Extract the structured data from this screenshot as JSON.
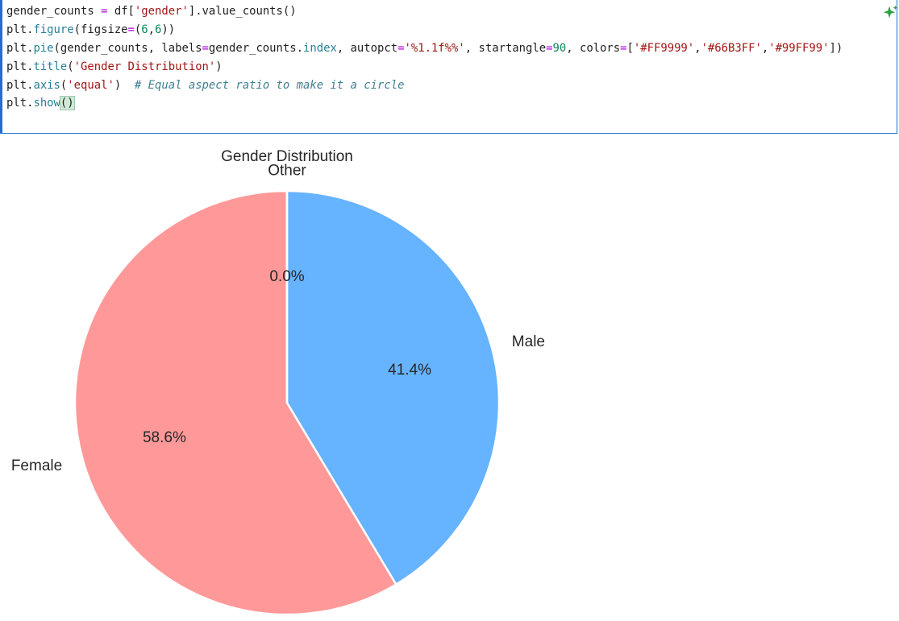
{
  "code_cell": {
    "lines": [
      [
        {
          "t": "gender_counts ",
          "c": ""
        },
        {
          "t": "=",
          "c": "op"
        },
        {
          "t": " df[",
          "c": ""
        },
        {
          "t": "'gender'",
          "c": "str"
        },
        {
          "t": "].value_counts()",
          "c": ""
        }
      ],
      [
        {
          "t": "plt.",
          "c": ""
        },
        {
          "t": "figure",
          "c": "fn"
        },
        {
          "t": "(figsize",
          "c": ""
        },
        {
          "t": "=",
          "c": "op"
        },
        {
          "t": "(",
          "c": ""
        },
        {
          "t": "6",
          "c": "num"
        },
        {
          "t": ",",
          "c": ""
        },
        {
          "t": "6",
          "c": "num"
        },
        {
          "t": "))",
          "c": ""
        }
      ],
      [
        {
          "t": "plt.",
          "c": ""
        },
        {
          "t": "pie",
          "c": "fn"
        },
        {
          "t": "(gender_counts, labels",
          "c": ""
        },
        {
          "t": "=",
          "c": "op"
        },
        {
          "t": "gender_counts.",
          "c": ""
        },
        {
          "t": "index",
          "c": "fn"
        },
        {
          "t": ", autopct",
          "c": ""
        },
        {
          "t": "=",
          "c": "op"
        },
        {
          "t": "'%1.1f%%'",
          "c": "str"
        },
        {
          "t": ", startangle",
          "c": ""
        },
        {
          "t": "=",
          "c": "op"
        },
        {
          "t": "90",
          "c": "num"
        },
        {
          "t": ", colors",
          "c": ""
        },
        {
          "t": "=",
          "c": "op"
        },
        {
          "t": "[",
          "c": ""
        },
        {
          "t": "'#FF9999'",
          "c": "str"
        },
        {
          "t": ",",
          "c": ""
        },
        {
          "t": "'#66B3FF'",
          "c": "str"
        },
        {
          "t": ",",
          "c": ""
        },
        {
          "t": "'#99FF99'",
          "c": "str"
        },
        {
          "t": "])",
          "c": ""
        }
      ],
      [
        {
          "t": "plt.",
          "c": ""
        },
        {
          "t": "title",
          "c": "fn"
        },
        {
          "t": "(",
          "c": ""
        },
        {
          "t": "'Gender Distribution'",
          "c": "str"
        },
        {
          "t": ")",
          "c": ""
        }
      ],
      [
        {
          "t": "plt.",
          "c": ""
        },
        {
          "t": "axis",
          "c": "fn"
        },
        {
          "t": "(",
          "c": ""
        },
        {
          "t": "'equal'",
          "c": "str"
        },
        {
          "t": ")  ",
          "c": ""
        },
        {
          "t": "# Equal aspect ratio to make it a circle",
          "c": "cm"
        }
      ],
      [
        {
          "t": "plt.",
          "c": ""
        },
        {
          "t": "show",
          "c": "fn"
        },
        {
          "t": "()",
          "c": "hl"
        }
      ]
    ]
  },
  "toolbar": {
    "sparkle_icon": "sparkle-icon",
    "sparkle_color": "#2ea043"
  },
  "chart_data": {
    "type": "pie",
    "title": "Gender Distribution",
    "labels": [
      "Other",
      "Male",
      "Female"
    ],
    "values": [
      0.0,
      41.4,
      58.6
    ],
    "pct_labels": [
      "0.0%",
      "41.4%",
      "58.6%"
    ],
    "colors": [
      "#99FF99",
      "#66B3FF",
      "#FF9999"
    ],
    "startangle": 90,
    "direction": "counterclockwise",
    "slice_order_from_start": [
      "Female",
      "Male",
      "Other"
    ]
  }
}
